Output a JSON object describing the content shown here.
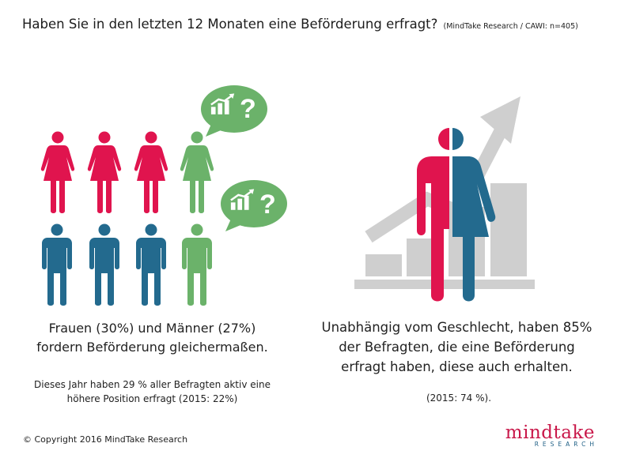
{
  "title": {
    "question": "Haben Sie in den letzten 12 Monaten eine Beförderung erfragt?",
    "source": "(MindTake Research / CAWI: n=405)"
  },
  "left": {
    "headline_line1": "Frauen (30%) und Männer (27%)",
    "headline_line2": "fordern Beförderung gleichermaßen.",
    "note_line1": "Dieses Jahr haben 29 % aller Befragten aktiv eine",
    "note_line2": "höhere Position erfragt (2015: 22%)",
    "bubble_symbol": "?"
  },
  "right": {
    "headline_line1": "Unabhängig vom Geschlecht, haben 85%",
    "headline_line2": "der Befragten, die eine Beförderung",
    "headline_line3": "erfragt haben, diese auch erhalten.",
    "note": "(2015: 74 %)."
  },
  "footer": {
    "copyright": "© Copyright 2016 MindTake Research",
    "logo_word": "mindtake",
    "logo_sub": "RESEARCH"
  },
  "colors": {
    "women": "#e0144e",
    "men": "#236a8e",
    "highlight": "#6bb26a",
    "growth_gray": "#cfcfcf",
    "logo": "#c9184a"
  },
  "icons": [
    "female-figure-icon",
    "male-figure-icon",
    "growth-chart-icon",
    "question-mark-icon",
    "speech-bubble-icon",
    "rising-arrow-icon"
  ]
}
